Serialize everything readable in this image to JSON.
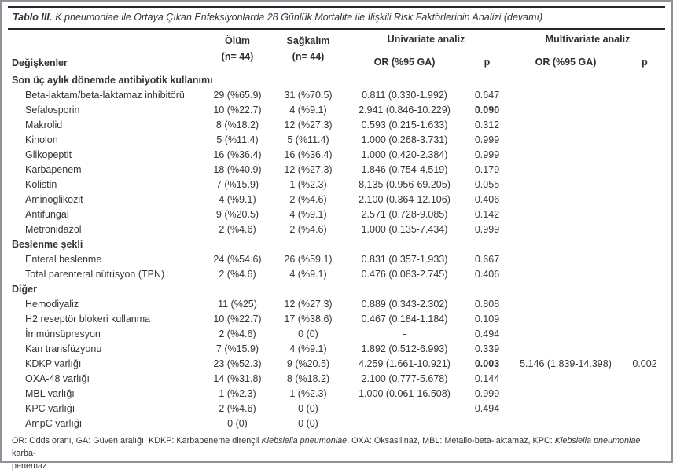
{
  "table": {
    "title_prefix": "Tablo III.",
    "title_text": "K.pneumoniae ile Ortaya Çıkan Enfeksiyonlarda 28 Günlük Mortalite ile İlişkili Risk Faktörlerinin Analizi (devamı)",
    "header": {
      "variables": "Değişkenler",
      "death_line1": "Ölüm",
      "death_line2": "(n= 44)",
      "survival_line1": "Sağkalım",
      "survival_line2": "(n= 44)",
      "group_univariate": "Univariate analiz",
      "group_multivariate": "Multivariate analiz",
      "or_label_uni": "OR (%95 GA)",
      "p_label_uni": "p",
      "or_label_multi": "OR (%95 GA)",
      "p_label_multi": "p"
    },
    "sections": [
      {
        "label": "Son üç aylık dönemde antibiyotik kullanımı",
        "rows": [
          {
            "name": "Beta-laktam/beta-laktamaz inhibitörü",
            "death": "29 (%65.9)",
            "survival": "31 (%70.5)",
            "uni_or": "0.811 (0.330-1.992)",
            "uni_p": "0.647",
            "uni_p_bold": false,
            "multi_or": "",
            "multi_p": ""
          },
          {
            "name": "Sefalosporin",
            "death": "10 (%22.7)",
            "survival": "4 (%9.1)",
            "uni_or": "2.941 (0.846-10.229)",
            "uni_p": "0.090",
            "uni_p_bold": true,
            "multi_or": "",
            "multi_p": ""
          },
          {
            "name": "Makrolid",
            "death": "8 (%18.2)",
            "survival": "12 (%27.3)",
            "uni_or": "0.593 (0.215-1.633)",
            "uni_p": "0.312",
            "uni_p_bold": false,
            "multi_or": "",
            "multi_p": ""
          },
          {
            "name": "Kinolon",
            "death": "5 (%11.4)",
            "survival": "5 (%11.4)",
            "uni_or": "1.000 (0.268-3.731)",
            "uni_p": "0.999",
            "uni_p_bold": false,
            "multi_or": "",
            "multi_p": ""
          },
          {
            "name": "Glikopeptit",
            "death": "16 (%36.4)",
            "survival": "16 (%36.4)",
            "uni_or": "1.000 (0.420-2.384)",
            "uni_p": "0.999",
            "uni_p_bold": false,
            "multi_or": "",
            "multi_p": ""
          },
          {
            "name": "Karbapenem",
            "death": "18 (%40.9)",
            "survival": "12 (%27.3)",
            "uni_or": "1.846 (0.754-4.519)",
            "uni_p": "0.179",
            "uni_p_bold": false,
            "multi_or": "",
            "multi_p": ""
          },
          {
            "name": "Kolistin",
            "death": "7 (%15.9)",
            "survival": "1 (%2.3)",
            "uni_or": "8.135 (0.956-69.205)",
            "uni_p": "0.055",
            "uni_p_bold": false,
            "multi_or": "",
            "multi_p": ""
          },
          {
            "name": "Aminoglikozit",
            "death": "4 (%9.1)",
            "survival": "2 (%4.6)",
            "uni_or": "2.100 (0.364-12.106)",
            "uni_p": "0.406",
            "uni_p_bold": false,
            "multi_or": "",
            "multi_p": ""
          },
          {
            "name": "Antifungal",
            "death": "9 (%20.5)",
            "survival": "4 (%9.1)",
            "uni_or": "2.571 (0.728-9.085)",
            "uni_p": "0.142",
            "uni_p_bold": false,
            "multi_or": "",
            "multi_p": ""
          },
          {
            "name": "Metronidazol",
            "death": "2 (%4.6)",
            "survival": "2 (%4.6)",
            "uni_or": "1.000 (0.135-7.434)",
            "uni_p": "0.999",
            "uni_p_bold": false,
            "multi_or": "",
            "multi_p": ""
          }
        ]
      },
      {
        "label": "Beslenme şekli",
        "rows": [
          {
            "name": "Enteral beslenme",
            "death": "24 (%54.6)",
            "survival": "26 (%59.1)",
            "uni_or": "0.831 (0.357-1.933)",
            "uni_p": "0.667",
            "uni_p_bold": false,
            "multi_or": "",
            "multi_p": ""
          },
          {
            "name": "Total parenteral nütrisyon (TPN)",
            "death": "2 (%4.6)",
            "survival": "4 (%9.1)",
            "uni_or": "0.476 (0.083-2.745)",
            "uni_p": "0.406",
            "uni_p_bold": false,
            "multi_or": "",
            "multi_p": ""
          }
        ]
      },
      {
        "label": "Diğer",
        "rows": [
          {
            "name": "Hemodiyaliz",
            "death": "11 (%25)",
            "survival": "12 (%27.3)",
            "uni_or": "0.889 (0.343-2.302)",
            "uni_p": "0.808",
            "uni_p_bold": false,
            "multi_or": "",
            "multi_p": ""
          },
          {
            "name": "H2 reseptör blokeri kullanma",
            "death": "10 (%22.7)",
            "survival": "17 (%38.6)",
            "uni_or": "0.467 (0.184-1.184)",
            "uni_p": "0.109",
            "uni_p_bold": false,
            "multi_or": "",
            "multi_p": ""
          },
          {
            "name": "İmmünsüpresyon",
            "death": "2 (%4.6)",
            "survival": "0 (0)",
            "uni_or": "-",
            "uni_p": "0.494",
            "uni_p_bold": false,
            "multi_or": "",
            "multi_p": ""
          },
          {
            "name": "Kan transfüzyonu",
            "death": "7 (%15.9)",
            "survival": "4 (%9.1)",
            "uni_or": "1.892 (0.512-6.993)",
            "uni_p": "0.339",
            "uni_p_bold": false,
            "multi_or": "",
            "multi_p": ""
          },
          {
            "name": "KDKP varlığı",
            "death": "23 (%52.3)",
            "survival": "9 (%20.5)",
            "uni_or": "4.259 (1.661-10.921)",
            "uni_p": "0.003",
            "uni_p_bold": true,
            "multi_or": "5.146 (1.839-14.398)",
            "multi_p": "0.002"
          },
          {
            "name": "OXA-48 varlığı",
            "death": "14 (%31.8)",
            "survival": "8 (%18.2)",
            "uni_or": "2.100 (0.777-5.678)",
            "uni_p": "0.144",
            "uni_p_bold": false,
            "multi_or": "",
            "multi_p": ""
          },
          {
            "name": "MBL varlığı",
            "death": "1 (%2.3)",
            "survival": "1 (%2.3)",
            "uni_or": "1.000 (0.061-16.508)",
            "uni_p": "0.999",
            "uni_p_bold": false,
            "multi_or": "",
            "multi_p": ""
          },
          {
            "name": "KPC varlığı",
            "death": "2 (%4.6)",
            "survival": "0 (0)",
            "uni_or": "-",
            "uni_p": "0.494",
            "uni_p_bold": false,
            "multi_or": "",
            "multi_p": ""
          },
          {
            "name": "AmpC varlığı",
            "death": "0 (0)",
            "survival": "0 (0)",
            "uni_or": "-",
            "uni_p": "-",
            "uni_p_bold": false,
            "multi_or": "",
            "multi_p": ""
          }
        ]
      }
    ],
    "footnote_segments": [
      {
        "text": "OR: Odds oranı, GA: Güven aralığı, KDKP: Karbapeneme dirençli ",
        "italic": false
      },
      {
        "text": "Klebsiella pneumoniae",
        "italic": true
      },
      {
        "text": ", OXA: Oksasilinaz, MBL: Metallo-beta-laktamaz, KPC: ",
        "italic": false
      },
      {
        "text": "Klebsiella pneumoniae",
        "italic": true
      },
      {
        "text": " karba-",
        "italic": false
      },
      {
        "break": true
      },
      {
        "text": "penemaz.",
        "italic": false
      }
    ],
    "colors": {
      "text": "#33353b",
      "rule": "#24262b",
      "frame": "#90929a",
      "background": "#ffffff"
    }
  }
}
